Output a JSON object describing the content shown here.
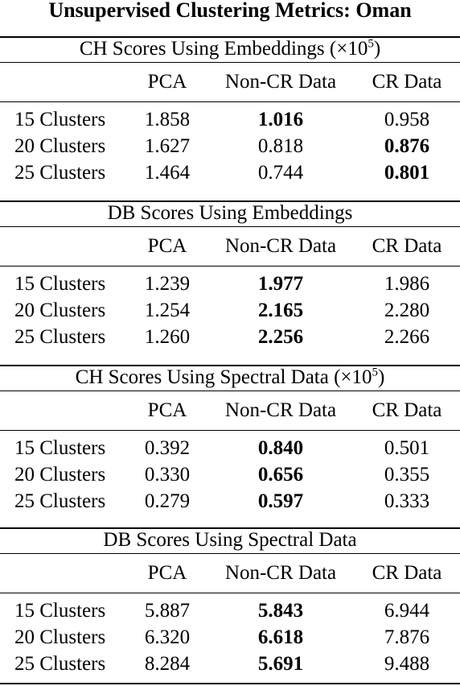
{
  "title": "Unsupervised Clustering Metrics: Oman",
  "columns": [
    "PCA",
    "Non-CR Data",
    "CR Data"
  ],
  "sections": [
    {
      "title": "CH Scores Using Embeddings (×10",
      "title_sup": "5",
      "title_suffix": ")",
      "rows": [
        {
          "label": "15 Clusters",
          "values": [
            "1.858",
            "1.016",
            "0.958"
          ],
          "bold": [
            false,
            true,
            false
          ]
        },
        {
          "label": "20 Clusters",
          "values": [
            "1.627",
            "0.818",
            "0.876"
          ],
          "bold": [
            false,
            false,
            true
          ]
        },
        {
          "label": "25 Clusters",
          "values": [
            "1.464",
            "0.744",
            "0.801"
          ],
          "bold": [
            false,
            false,
            true
          ]
        }
      ]
    },
    {
      "title": "DB Scores Using Embeddings",
      "title_sup": "",
      "title_suffix": "",
      "rows": [
        {
          "label": "15 Clusters",
          "values": [
            "1.239",
            "1.977",
            "1.986"
          ],
          "bold": [
            false,
            true,
            false
          ]
        },
        {
          "label": "20 Clusters",
          "values": [
            "1.254",
            "2.165",
            "2.280"
          ],
          "bold": [
            false,
            true,
            false
          ]
        },
        {
          "label": "25 Clusters",
          "values": [
            "1.260",
            "2.256",
            "2.266"
          ],
          "bold": [
            false,
            true,
            false
          ]
        }
      ]
    },
    {
      "title": "CH Scores Using Spectral Data (×10",
      "title_sup": "5",
      "title_suffix": ")",
      "rows": [
        {
          "label": "15 Clusters",
          "values": [
            "0.392",
            "0.840",
            "0.501"
          ],
          "bold": [
            false,
            true,
            false
          ]
        },
        {
          "label": "20 Clusters",
          "values": [
            "0.330",
            "0.656",
            "0.355"
          ],
          "bold": [
            false,
            true,
            false
          ]
        },
        {
          "label": "25 Clusters",
          "values": [
            "0.279",
            "0.597",
            "0.333"
          ],
          "bold": [
            false,
            true,
            false
          ]
        }
      ]
    },
    {
      "title": "DB Scores Using Spectral Data",
      "title_sup": "",
      "title_suffix": "",
      "rows": [
        {
          "label": "15 Clusters",
          "values": [
            "5.887",
            "5.843",
            "6.944"
          ],
          "bold": [
            false,
            true,
            false
          ]
        },
        {
          "label": "20 Clusters",
          "values": [
            "6.320",
            "6.618",
            "7.876"
          ],
          "bold": [
            false,
            true,
            false
          ]
        },
        {
          "label": "25 Clusters",
          "values": [
            "8.284",
            "5.691",
            "9.488"
          ],
          "bold": [
            false,
            true,
            false
          ]
        }
      ]
    }
  ]
}
